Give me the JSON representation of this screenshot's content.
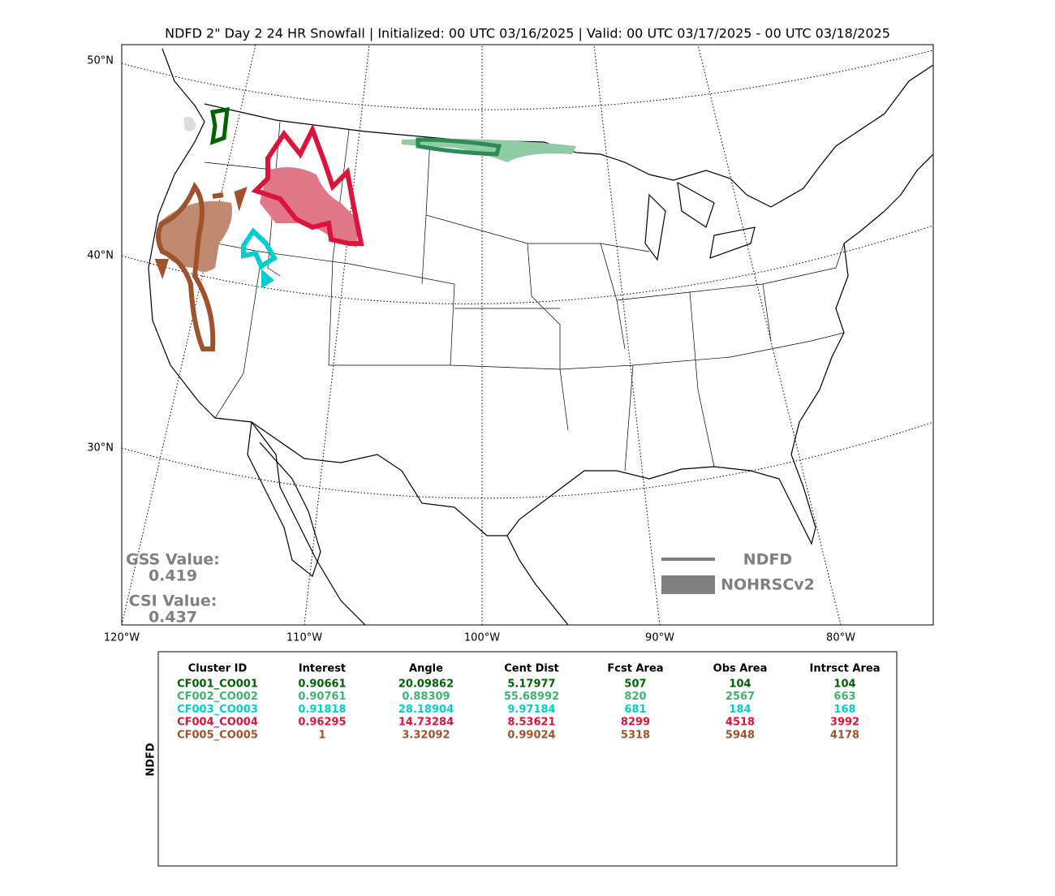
{
  "title": "NDFD 2\" Day 2 24 HR Snowfall | Initialized: 00 UTC 03/16/2025 | Valid: 00 UTC 03/17/2025 - 00 UTC 03/18/2025",
  "map": {
    "lat_labels": [
      "50°N",
      "40°N",
      "30°N"
    ],
    "lon_labels": [
      "120°W",
      "110°W",
      "100°W",
      "90°W",
      "80°W"
    ],
    "scores": {
      "gss_label": "GSS Value:",
      "gss_value": "0.419",
      "csi_label": "CSI Value:",
      "csi_value": "0.437"
    },
    "legend": {
      "line_label": "NDFD",
      "area_label": "NOHRSCv2"
    }
  },
  "table": {
    "side_label": "NDFD",
    "headers": [
      "Cluster ID",
      "Interest",
      "Angle",
      "Cent Dist",
      "Fcst Area",
      "Obs Area",
      "Intrsct Area"
    ],
    "rows": [
      {
        "color": "#006400",
        "cells": [
          "CF001_CO001",
          "0.90661",
          "20.09862",
          "5.17977",
          "507",
          "104",
          "104"
        ]
      },
      {
        "color": "#3cb371",
        "cells": [
          "CF002_CO002",
          "0.90761",
          "0.88309",
          "55.68992",
          "820",
          "2567",
          "663"
        ]
      },
      {
        "color": "#00ced1",
        "cells": [
          "CF003_CO003",
          "0.91818",
          "28.18904",
          "9.97184",
          "681",
          "184",
          "168"
        ]
      },
      {
        "color": "#dc143c",
        "cells": [
          "CF004_CO004",
          "0.96295",
          "14.73284",
          "8.53621",
          "8299",
          "4518",
          "3992"
        ]
      },
      {
        "color": "#a0522d",
        "cells": [
          "CF005_CO005",
          "1",
          "3.32092",
          "0.99024",
          "5318",
          "5948",
          "4178"
        ]
      }
    ]
  }
}
